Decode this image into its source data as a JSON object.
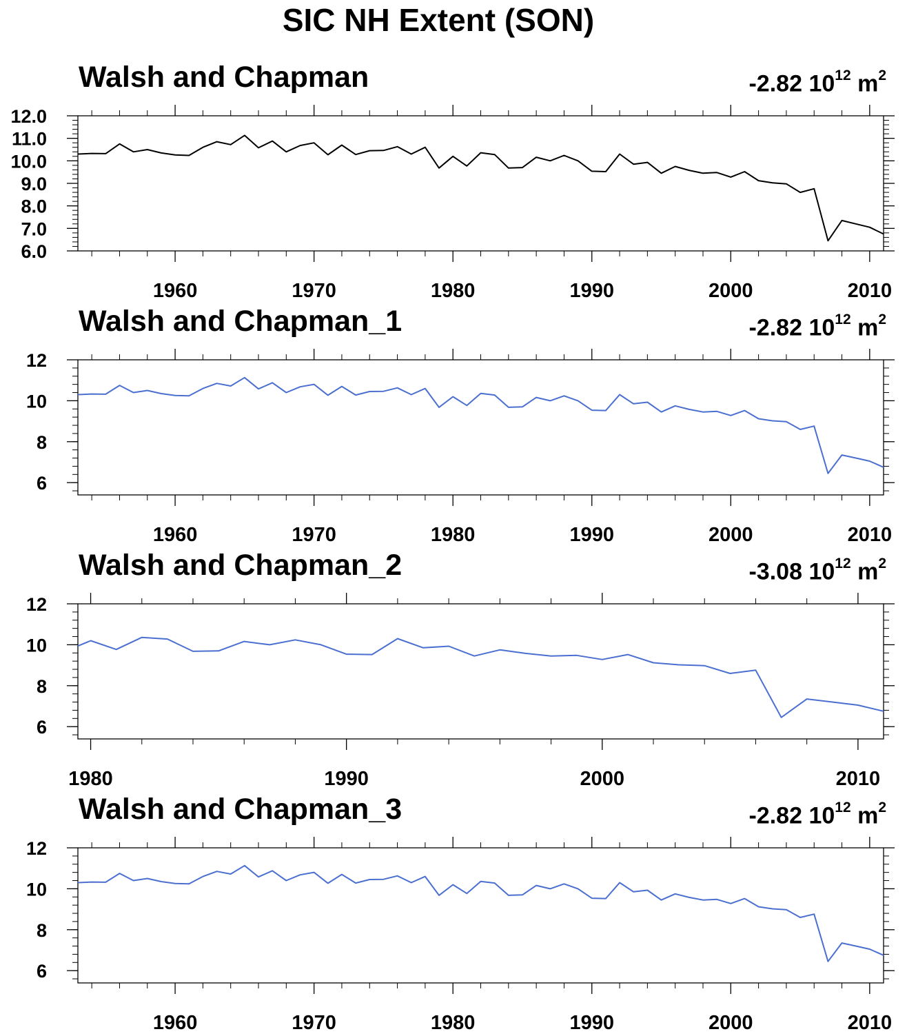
{
  "title": "SIC NH Extent (SON)",
  "colors": {
    "black": "#000000",
    "blue": "#4a6fd0"
  },
  "chart_data": [
    {
      "type": "line",
      "title": "Walsh and Chapman",
      "trend": {
        "value": "-2.82",
        "base": "10",
        "exponent": "12",
        "unit": "m",
        "unit_exponent": "2"
      },
      "color": "#000000",
      "xlim": [
        1953,
        2011
      ],
      "ylim": [
        6.0,
        12.0
      ],
      "xticks": [
        1960,
        1970,
        1980,
        1990,
        2000,
        2010
      ],
      "yticks": [
        "6.0",
        "7.0",
        "8.0",
        "9.0",
        "10.0",
        "11.0",
        "12.0"
      ],
      "yticks_values": [
        6,
        7,
        8,
        9,
        10,
        11,
        12
      ],
      "x": [
        1953,
        1954,
        1955,
        1956,
        1957,
        1958,
        1959,
        1960,
        1961,
        1962,
        1963,
        1964,
        1965,
        1966,
        1967,
        1968,
        1969,
        1970,
        1971,
        1972,
        1973,
        1974,
        1975,
        1976,
        1977,
        1978,
        1979,
        1980,
        1981,
        1982,
        1983,
        1984,
        1985,
        1986,
        1987,
        1988,
        1989,
        1990,
        1991,
        1992,
        1993,
        1994,
        1995,
        1996,
        1997,
        1998,
        1999,
        2000,
        2001,
        2002,
        2003,
        2004,
        2005,
        2006,
        2007,
        2008,
        2009,
        2010,
        2011
      ],
      "y": [
        10.3,
        10.33,
        10.32,
        10.75,
        10.4,
        10.5,
        10.35,
        10.26,
        10.24,
        10.6,
        10.85,
        10.72,
        11.13,
        10.58,
        10.88,
        10.4,
        10.68,
        10.8,
        10.27,
        10.7,
        10.28,
        10.45,
        10.46,
        10.63,
        10.3,
        10.6,
        9.68,
        10.2,
        9.77,
        10.36,
        10.28,
        9.68,
        9.7,
        10.16,
        10.0,
        10.24,
        10.0,
        9.54,
        9.52,
        10.3,
        9.85,
        9.93,
        9.45,
        9.75,
        9.58,
        9.45,
        9.48,
        9.28,
        9.52,
        9.12,
        9.02,
        8.98,
        8.6,
        8.76,
        6.45,
        7.35,
        7.2,
        7.05,
        6.75
      ]
    },
    {
      "type": "line",
      "title": "Walsh and Chapman_1",
      "trend": {
        "value": "-2.82",
        "base": "10",
        "exponent": "12",
        "unit": "m",
        "unit_exponent": "2"
      },
      "color": "#4a6fd0",
      "xlim": [
        1953,
        2011
      ],
      "ylim": [
        5.4,
        12.0
      ],
      "xticks": [
        1960,
        1970,
        1980,
        1990,
        2000,
        2010
      ],
      "yticks": [
        "6",
        "8",
        "10",
        "12"
      ],
      "yticks_values": [
        6,
        8,
        10,
        12
      ],
      "x": [
        1953,
        1954,
        1955,
        1956,
        1957,
        1958,
        1959,
        1960,
        1961,
        1962,
        1963,
        1964,
        1965,
        1966,
        1967,
        1968,
        1969,
        1970,
        1971,
        1972,
        1973,
        1974,
        1975,
        1976,
        1977,
        1978,
        1979,
        1980,
        1981,
        1982,
        1983,
        1984,
        1985,
        1986,
        1987,
        1988,
        1989,
        1990,
        1991,
        1992,
        1993,
        1994,
        1995,
        1996,
        1997,
        1998,
        1999,
        2000,
        2001,
        2002,
        2003,
        2004,
        2005,
        2006,
        2007,
        2008,
        2009,
        2010,
        2011
      ],
      "y": [
        10.3,
        10.33,
        10.32,
        10.75,
        10.4,
        10.5,
        10.35,
        10.26,
        10.24,
        10.6,
        10.85,
        10.72,
        11.13,
        10.58,
        10.88,
        10.4,
        10.68,
        10.8,
        10.27,
        10.7,
        10.28,
        10.45,
        10.46,
        10.63,
        10.3,
        10.6,
        9.68,
        10.2,
        9.77,
        10.36,
        10.28,
        9.68,
        9.7,
        10.16,
        10.0,
        10.24,
        10.0,
        9.54,
        9.52,
        10.3,
        9.85,
        9.93,
        9.45,
        9.75,
        9.58,
        9.45,
        9.48,
        9.28,
        9.52,
        9.12,
        9.02,
        8.98,
        8.6,
        8.76,
        6.45,
        7.35,
        7.2,
        7.05,
        6.75
      ]
    },
    {
      "type": "line",
      "title": "Walsh and Chapman_2",
      "trend": {
        "value": "-3.08",
        "base": "10",
        "exponent": "12",
        "unit": "m",
        "unit_exponent": "2"
      },
      "color": "#4a6fd0",
      "xlim": [
        1979.5,
        2011
      ],
      "ylim": [
        5.4,
        12.0
      ],
      "xticks": [
        1980,
        1990,
        2000,
        2010
      ],
      "yticks": [
        "6",
        "8",
        "10",
        "12"
      ],
      "yticks_values": [
        6,
        8,
        10,
        12
      ],
      "x": [
        1979.5,
        1980,
        1981,
        1982,
        1983,
        1984,
        1985,
        1986,
        1987,
        1988,
        1989,
        1990,
        1991,
        1992,
        1993,
        1994,
        1995,
        1996,
        1997,
        1998,
        1999,
        2000,
        2001,
        2002,
        2003,
        2004,
        2005,
        2006,
        2007,
        2008,
        2009,
        2010,
        2011
      ],
      "y": [
        9.94,
        10.2,
        9.77,
        10.36,
        10.28,
        9.68,
        9.7,
        10.16,
        10.0,
        10.24,
        10.0,
        9.54,
        9.52,
        10.3,
        9.85,
        9.93,
        9.45,
        9.75,
        9.58,
        9.45,
        9.48,
        9.28,
        9.52,
        9.12,
        9.02,
        8.98,
        8.6,
        8.76,
        6.45,
        7.35,
        7.2,
        7.05,
        6.75
      ]
    },
    {
      "type": "line",
      "title": "Walsh and Chapman_3",
      "trend": {
        "value": "-2.82",
        "base": "10",
        "exponent": "12",
        "unit": "m",
        "unit_exponent": "2"
      },
      "color": "#4a6fd0",
      "xlim": [
        1953,
        2011
      ],
      "ylim": [
        5.4,
        12.0
      ],
      "xticks": [
        1960,
        1970,
        1980,
        1990,
        2000,
        2010
      ],
      "yticks": [
        "6",
        "8",
        "10",
        "12"
      ],
      "yticks_values": [
        6,
        8,
        10,
        12
      ],
      "x": [
        1953,
        1954,
        1955,
        1956,
        1957,
        1958,
        1959,
        1960,
        1961,
        1962,
        1963,
        1964,
        1965,
        1966,
        1967,
        1968,
        1969,
        1970,
        1971,
        1972,
        1973,
        1974,
        1975,
        1976,
        1977,
        1978,
        1979,
        1980,
        1981,
        1982,
        1983,
        1984,
        1985,
        1986,
        1987,
        1988,
        1989,
        1990,
        1991,
        1992,
        1993,
        1994,
        1995,
        1996,
        1997,
        1998,
        1999,
        2000,
        2001,
        2002,
        2003,
        2004,
        2005,
        2006,
        2007,
        2008,
        2009,
        2010,
        2011
      ],
      "y": [
        10.3,
        10.33,
        10.32,
        10.75,
        10.4,
        10.5,
        10.35,
        10.26,
        10.24,
        10.6,
        10.85,
        10.72,
        11.13,
        10.58,
        10.88,
        10.4,
        10.68,
        10.8,
        10.27,
        10.7,
        10.28,
        10.45,
        10.46,
        10.63,
        10.3,
        10.6,
        9.68,
        10.2,
        9.77,
        10.36,
        10.28,
        9.68,
        9.7,
        10.16,
        10.0,
        10.24,
        10.0,
        9.54,
        9.52,
        10.3,
        9.85,
        9.93,
        9.45,
        9.75,
        9.58,
        9.45,
        9.48,
        9.28,
        9.52,
        9.12,
        9.02,
        8.98,
        8.6,
        8.76,
        6.45,
        7.35,
        7.2,
        7.05,
        6.75
      ]
    }
  ]
}
